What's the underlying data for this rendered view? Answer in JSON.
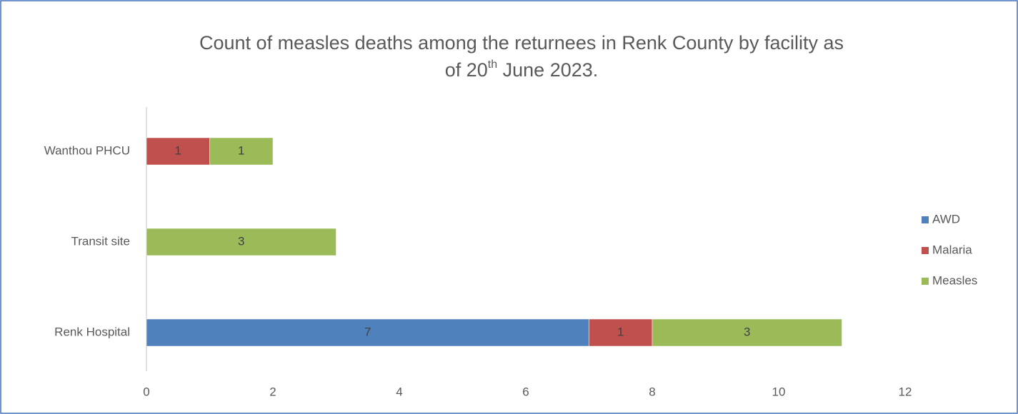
{
  "chart_data": {
    "type": "stacked_barh",
    "title": [
      "Count of measles deaths among the returnees in Renk County by facility as",
      "of 20",
      "th",
      " June 2023."
    ],
    "categories": [
      "Renk Hospital",
      "Transit site",
      "Wanthou PHCU"
    ],
    "series": [
      {
        "name": "AWD",
        "color": "#4f81bd",
        "values": [
          7,
          null,
          null
        ]
      },
      {
        "name": "Malaria",
        "color": "#c0504d",
        "values": [
          1,
          null,
          1
        ]
      },
      {
        "name": "Measles",
        "color": "#9bbb59",
        "values": [
          3,
          3,
          1
        ]
      }
    ],
    "xlim": [
      0,
      12
    ],
    "xticks": [
      0,
      2,
      4,
      6,
      8,
      10,
      12
    ],
    "legend": "right",
    "grid": false
  }
}
